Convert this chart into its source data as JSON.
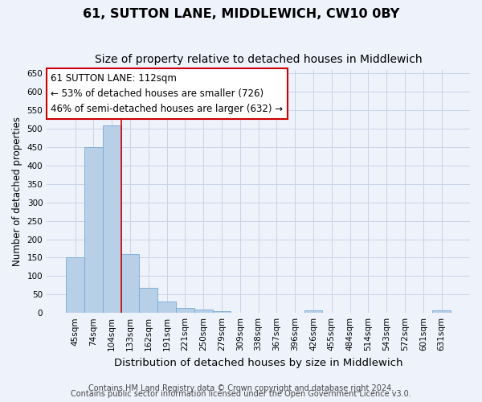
{
  "title": "61, SUTTON LANE, MIDDLEWICH, CW10 0BY",
  "subtitle": "Size of property relative to detached houses in Middlewich",
  "xlabel": "Distribution of detached houses by size in Middlewich",
  "ylabel": "Number of detached properties",
  "categories": [
    "45sqm",
    "74sqm",
    "104sqm",
    "133sqm",
    "162sqm",
    "191sqm",
    "221sqm",
    "250sqm",
    "279sqm",
    "309sqm",
    "338sqm",
    "367sqm",
    "396sqm",
    "426sqm",
    "455sqm",
    "484sqm",
    "514sqm",
    "543sqm",
    "572sqm",
    "601sqm",
    "631sqm"
  ],
  "values": [
    150,
    450,
    509,
    160,
    68,
    30,
    13,
    9,
    5,
    0,
    0,
    0,
    0,
    6,
    0,
    0,
    0,
    0,
    0,
    0,
    6
  ],
  "bar_color": "#b8cfe8",
  "bar_edge_color": "#7aa8d4",
  "grid_color": "#c8d4e8",
  "background_color": "#eef2fa",
  "vline_color": "#cc0000",
  "annotation_text": "61 SUTTON LANE: 112sqm\n← 53% of detached houses are smaller (726)\n46% of semi-detached houses are larger (632) →",
  "annotation_box_color": "#ffffff",
  "annotation_border_color": "#cc0000",
  "ylim": [
    0,
    660
  ],
  "yticks": [
    0,
    50,
    100,
    150,
    200,
    250,
    300,
    350,
    400,
    450,
    500,
    550,
    600,
    650
  ],
  "footer_line1": "Contains HM Land Registry data © Crown copyright and database right 2024.",
  "footer_line2": "Contains public sector information licensed under the Open Government Licence v3.0.",
  "title_fontsize": 11.5,
  "subtitle_fontsize": 10,
  "xlabel_fontsize": 9.5,
  "ylabel_fontsize": 8.5,
  "tick_fontsize": 7.5,
  "annotation_fontsize": 8.5,
  "footer_fontsize": 7
}
